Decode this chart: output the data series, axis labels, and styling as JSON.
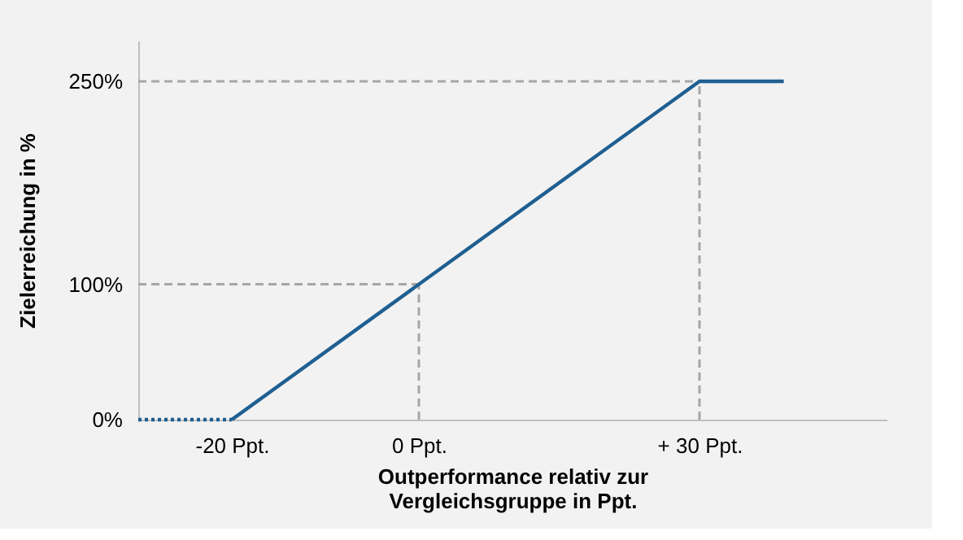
{
  "chart_data": {
    "type": "line",
    "xlabel": "Outperformance relativ zur\nVergleichsgruppe in Ppt.",
    "ylabel": "Zielerreichung in %",
    "series": [
      {
        "color": "#1f5f91",
        "x": [
          -30,
          -20
        ],
        "values": [
          0,
          0
        ],
        "line_style": "dotted"
      },
      {
        "color": "#1f5f91",
        "x": [
          -20,
          30,
          39
        ],
        "values": [
          0,
          250,
          250
        ],
        "line_style": "solid"
      }
    ],
    "xlim": [
      -30,
      50
    ],
    "ylim": [
      0,
      280
    ],
    "xticks": [
      {
        "value": -20,
        "label": "-20 Ppt."
      },
      {
        "value": 0,
        "label": "0 Ppt."
      },
      {
        "value": 30,
        "label": "+ 30 Ppt."
      }
    ],
    "yticks": [
      {
        "value": 0,
        "label": "0%"
      },
      {
        "value": 100,
        "label": "100%"
      },
      {
        "value": 250,
        "label": "250%"
      }
    ],
    "ref_lines": [
      {
        "axis": "y",
        "value": 100,
        "color": "#a6a6a6",
        "line_style": "dashed"
      },
      {
        "axis": "y",
        "value": 250,
        "color": "#a6a6a6",
        "line_style": "dashed"
      },
      {
        "axis": "x",
        "value": 0,
        "color": "#a6a6a6",
        "line_style": "dashed"
      },
      {
        "axis": "x",
        "value": 30,
        "color": "#a6a6a6",
        "line_style": "dashed"
      }
    ],
    "marker": "none"
  }
}
